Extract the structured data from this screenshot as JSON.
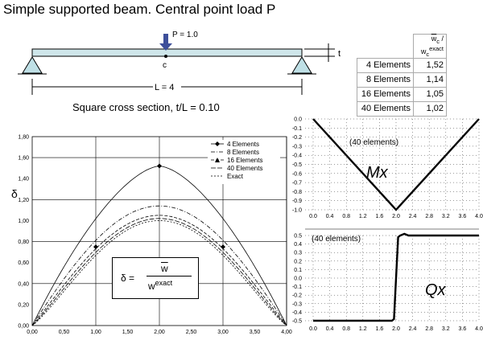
{
  "title": "Simple supported beam. Central point load P",
  "beam": {
    "load_label": "P = 1.0",
    "point_label": "c",
    "length_label": "L = 4",
    "thickness_label": "t",
    "cross_section": "Square cross section,  t/L = 0.10"
  },
  "table": {
    "header_num": "w",
    "header_num_sub": "c",
    "header_sep": " / ",
    "header_den": "w",
    "header_den_sub": "c",
    "header_den_sup": "exact",
    "rows": [
      {
        "label": "4 Elements",
        "value": "1,52"
      },
      {
        "label": "8 Elements",
        "value": "1,14"
      },
      {
        "label": "16 Elements",
        "value": "1,05"
      },
      {
        "label": "40 Elements",
        "value": "1,02"
      }
    ]
  },
  "formula": {
    "lhs": "δ =",
    "num": "w",
    "den": "w",
    "den_sup": "exact"
  },
  "chart_data": [
    {
      "type": "line",
      "ylabel": "δ",
      "xlim": [
        0,
        4
      ],
      "ylim": [
        0,
        1.8
      ],
      "x_ticks": [
        "0,00",
        "0,50",
        "1,00",
        "1,50",
        "2,00",
        "2,50",
        "3,00",
        "3,50",
        "4,00"
      ],
      "y_ticks": [
        "0,00",
        "0,20",
        "0,40",
        "0,60",
        "0,80",
        "1,00",
        "1,20",
        "1,40",
        "1,60",
        "1,80"
      ],
      "grid": true,
      "legend_position": "top-right",
      "series": [
        {
          "name": "4 Elements",
          "peak": 1.52
        },
        {
          "name": "8 Elements",
          "peak": 1.14
        },
        {
          "name": "16 Elements",
          "peak": 1.05
        },
        {
          "name": "40 Elements",
          "peak": 1.02
        },
        {
          "name": "Exact",
          "peak": 1.0
        }
      ]
    },
    {
      "type": "line",
      "annotation": "(40 elements)",
      "label": "Mx",
      "xlim": [
        0,
        4
      ],
      "ylim": [
        -1,
        0
      ],
      "x_ticks": [
        "0.0",
        "0.4",
        "0.8",
        "1.2",
        "1.6",
        "2.0",
        "2.4",
        "2.8",
        "3.2",
        "3.6",
        "4.0"
      ],
      "y_ticks": [
        "0.0",
        "-0.1",
        "-0.2",
        "-0.3",
        "-0.4",
        "-0.5",
        "-0.6",
        "-0.7",
        "-0.8",
        "-0.9",
        "-1.0"
      ],
      "x": [
        0,
        2,
        4
      ],
      "y": [
        0,
        -1,
        0
      ]
    },
    {
      "type": "line",
      "annotation": "(40 elements)",
      "label": "Qx",
      "xlim": [
        0,
        4
      ],
      "ylim": [
        -0.5,
        0.5
      ],
      "x_ticks": [
        "0.0",
        "0.4",
        "0.8",
        "1.2",
        "1.6",
        "2.0",
        "2.4",
        "2.8",
        "3.2",
        "3.6",
        "4.0"
      ],
      "y_ticks": [
        "0.5",
        "0.4",
        "0.3",
        "0.2",
        "0.1",
        "0.0",
        "-0.1",
        "-0.2",
        "-0.3",
        "-0.4",
        "-0.5"
      ],
      "x": [
        0,
        1.9,
        1.95,
        2.05,
        2.1,
        2.2,
        2.3,
        4.0
      ],
      "y": [
        -0.5,
        -0.5,
        -0.48,
        0.48,
        0.5,
        0.52,
        0.5,
        0.5
      ]
    }
  ]
}
